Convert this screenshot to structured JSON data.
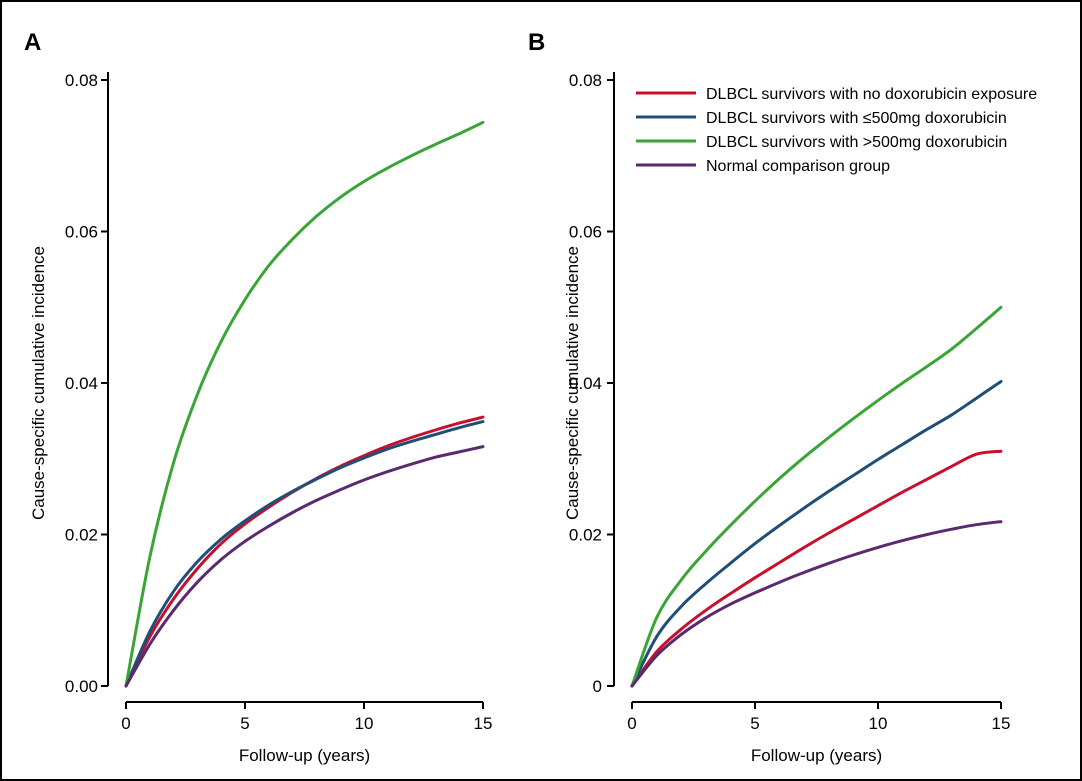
{
  "chart_data": [
    {
      "panel": "A",
      "type": "line",
      "xlabel": "Follow-up (years)",
      "ylabel": "Cause-specific cumulative incidence",
      "xlim": [
        0,
        15
      ],
      "ylim": [
        0,
        0.08
      ],
      "xticks": [
        "0",
        "5",
        "10",
        "15"
      ],
      "yticks": [
        "0.00",
        "0.02",
        "0.04",
        "0.06",
        "0.08"
      ],
      "x": [
        0,
        1,
        2,
        3,
        4,
        5,
        6,
        7,
        8,
        9,
        10,
        11,
        12,
        13,
        14,
        15
      ],
      "series": [
        {
          "key": "no_dox",
          "color": "#c8102e",
          "values": [
            0.0,
            0.0065,
            0.0115,
            0.0155,
            0.0188,
            0.0214,
            0.0236,
            0.0256,
            0.0274,
            0.029,
            0.0304,
            0.0317,
            0.0328,
            0.0338,
            0.0347,
            0.0355
          ]
        },
        {
          "key": "le500",
          "color": "#1f4e79",
          "values": [
            0.0,
            0.0072,
            0.0125,
            0.0164,
            0.0194,
            0.0218,
            0.0239,
            0.0257,
            0.0273,
            0.0288,
            0.0301,
            0.0313,
            0.0323,
            0.0332,
            0.0341,
            0.0349
          ]
        },
        {
          "key": "gt500",
          "color": "#3aa537",
          "values": [
            0.0,
            0.017,
            0.0295,
            0.0385,
            0.0455,
            0.051,
            0.0555,
            0.059,
            0.062,
            0.0645,
            0.0666,
            0.0684,
            0.07,
            0.0715,
            0.0729,
            0.0744
          ]
        },
        {
          "key": "normal",
          "color": "#5b2a6e",
          "values": [
            0.0,
            0.0055,
            0.01,
            0.0137,
            0.0167,
            0.0191,
            0.0211,
            0.0229,
            0.0245,
            0.0259,
            0.0272,
            0.0283,
            0.0293,
            0.0302,
            0.0309,
            0.0316
          ]
        }
      ]
    },
    {
      "panel": "B",
      "type": "line",
      "xlabel": "Follow-up (years)",
      "ylabel": "Cause-specific cumulative incidence",
      "xlim": [
        0,
        15
      ],
      "ylim": [
        0,
        0.08
      ],
      "xticks": [
        "0",
        "5",
        "10",
        "15"
      ],
      "yticks": [
        "0",
        "0.02",
        "0.04",
        "0.06",
        "0.08"
      ],
      "legend_position": "top-right",
      "x": [
        0,
        1,
        2,
        3,
        4,
        5,
        6,
        7,
        8,
        9,
        10,
        11,
        12,
        13,
        14,
        15
      ],
      "series": [
        {
          "key": "no_dox",
          "name": "DLBCL survivors with no doxorubicin exposure",
          "color": "#c8102e",
          "values": [
            0.0,
            0.0045,
            0.0075,
            0.01,
            0.0122,
            0.0143,
            0.0163,
            0.0183,
            0.0202,
            0.022,
            0.0238,
            0.0256,
            0.0273,
            0.029,
            0.0306,
            0.031
          ]
        },
        {
          "key": "le500",
          "name": "DLBCL survivors with ≤500mg doxorubicin",
          "color": "#1f4e79",
          "values": [
            0.0,
            0.0065,
            0.0105,
            0.0135,
            0.0162,
            0.0188,
            0.0212,
            0.0235,
            0.0257,
            0.0278,
            0.0299,
            0.0319,
            0.0339,
            0.0358,
            0.038,
            0.0402
          ]
        },
        {
          "key": "gt500",
          "name": "DLBCL survivors with >500mg doxorubicin",
          "color": "#3aa537",
          "values": [
            0.0,
            0.009,
            0.014,
            0.0178,
            0.0212,
            0.0244,
            0.0274,
            0.0302,
            0.0328,
            0.0353,
            0.0377,
            0.04,
            0.0422,
            0.0445,
            0.0472,
            0.05
          ]
        },
        {
          "key": "normal",
          "name": "Normal comparison group",
          "color": "#5b2a6e",
          "values": [
            0.0,
            0.004,
            0.0068,
            0.009,
            0.0108,
            0.0123,
            0.0137,
            0.015,
            0.0162,
            0.0173,
            0.0183,
            0.0192,
            0.02,
            0.0207,
            0.0213,
            0.0217
          ]
        }
      ]
    }
  ]
}
